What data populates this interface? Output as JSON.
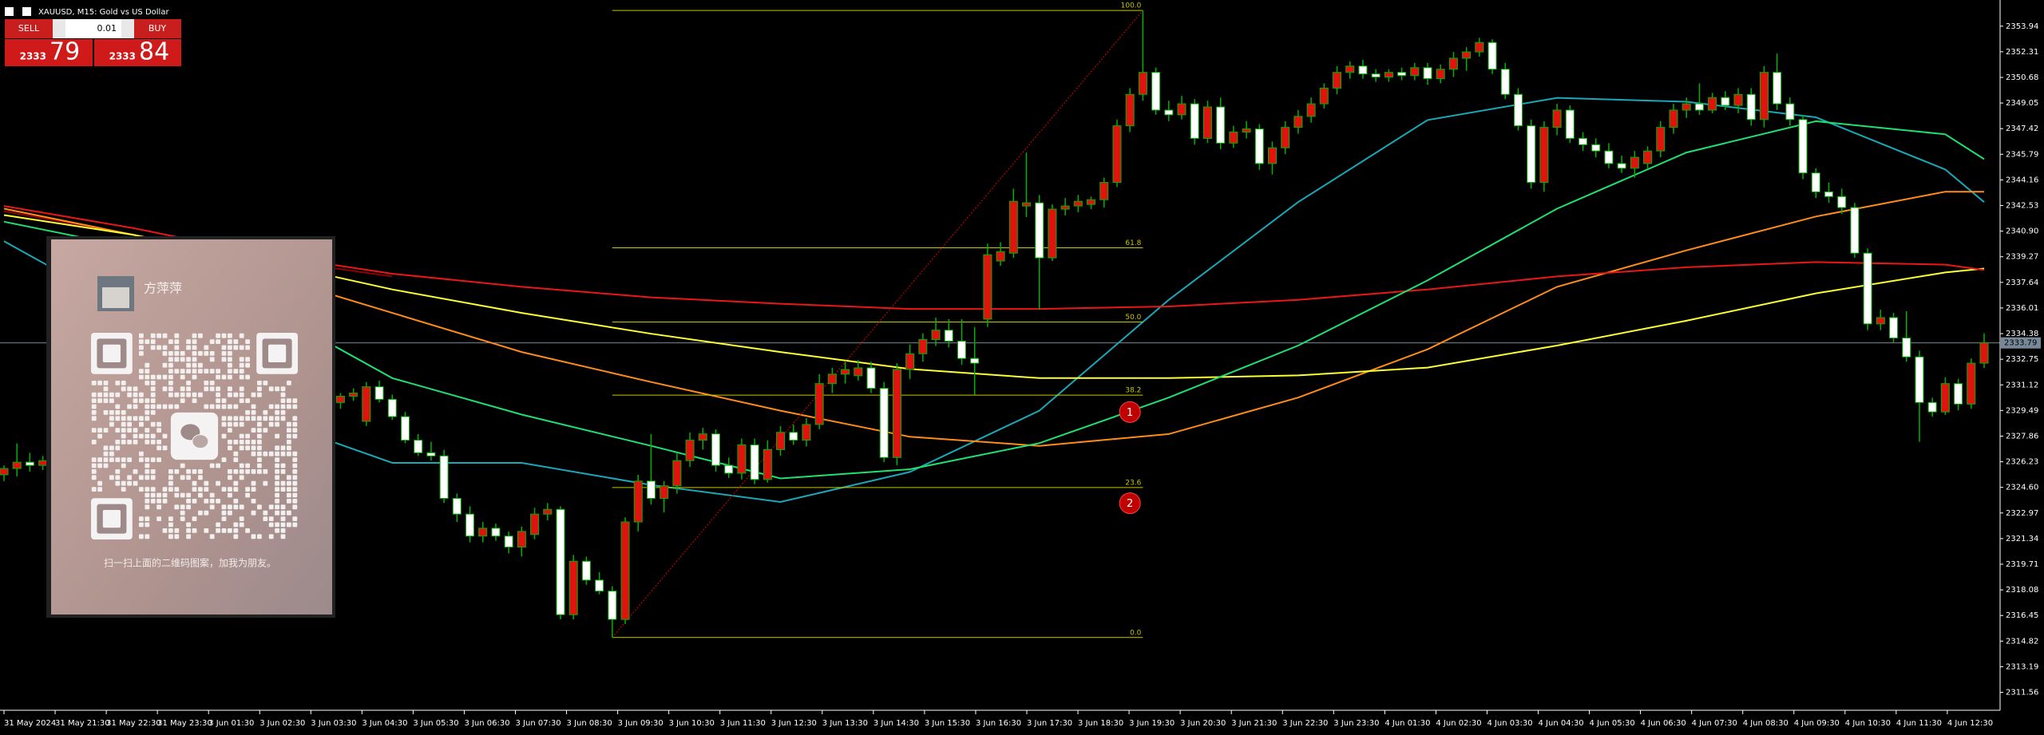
{
  "chart_data": {
    "type": "candlestick",
    "title": "XAUUSD, M15:  Gold vs US Dollar",
    "up_color": "#e0130f",
    "down_color": "#ffffff",
    "wick_color": "#00b300",
    "ylim": [
      2310.42,
      2355.35
    ],
    "yticks": [
      2353.94,
      2352.31,
      2350.68,
      2349.05,
      2347.42,
      2345.79,
      2344.16,
      2342.53,
      {
        "value": 2340.9,
        "label": "2340.90"
      },
      2339.27,
      2337.64,
      2336.01,
      2334.38,
      2332.75,
      2331.12,
      2329.49,
      2327.86,
      2326.23,
      {
        "value": 2324.6,
        "label": "2324.60"
      },
      2322.97,
      2321.34,
      2319.71,
      2318.08,
      2316.45,
      2314.82,
      2313.19,
      2311.56
    ],
    "x_labels": [
      "31 May 2024",
      "31 May 21:30",
      "31 May 22:30",
      "31 May 23:30",
      "3 Jun 01:30",
      "3 Jun 02:30",
      "3 Jun 03:30",
      "3 Jun 04:30",
      "3 Jun 05:30",
      "3 Jun 06:30",
      "3 Jun 07:30",
      "3 Jun 08:30",
      "3 Jun 09:30",
      "3 Jun 10:30",
      "3 Jun 11:30",
      "3 Jun 12:30",
      "3 Jun 13:30",
      "3 Jun 14:30",
      "3 Jun 15:30",
      "3 Jun 16:30",
      "3 Jun 17:30",
      "3 Jun 18:30",
      "3 Jun 19:30",
      "3 Jun 20:30",
      "3 Jun 21:30",
      "3 Jun 22:30",
      "3 Jun 23:30",
      "4 Jun 01:30",
      "4 Jun 02:30",
      "4 Jun 03:30",
      "4 Jun 04:30",
      "4 Jun 05:30",
      "4 Jun 06:30",
      "4 Jun 07:30",
      "4 Jun 08:30",
      "4 Jun 09:30",
      "4 Jun 10:30",
      "4 Jun 11:30",
      "4 Jun 12:30"
    ],
    "open": [
      2325.4,
      2325.8,
      2326.2,
      2326.0,
      null,
      null,
      null,
      null,
      null,
      null,
      null,
      null,
      null,
      null,
      null,
      null,
      null,
      null,
      null,
      null,
      null,
      null,
      null,
      null,
      null,
      null,
      2330.0,
      2330.4,
      2328.8,
      2331.0,
      2330.2,
      2329.1,
      2327.6,
      2326.8,
      2326.6,
      2323.9,
      2322.9,
      2321.5,
      2322.0,
      2321.5,
      2320.8,
      2321.6,
      2322.9,
      2323.2,
      2316.5,
      2319.9,
      2318.7,
      2318.0,
      2316.2,
      2322.4,
      2325.0,
      2323.9,
      2324.7,
      2326.3,
      2327.6,
      2328.0,
      2326.0,
      2325.5,
      2327.3,
      2325.1,
      2327.0,
      2328.1,
      2327.6,
      2328.6,
      2331.2,
      2331.8,
      2331.7,
      2332.2,
      2330.9,
      2326.5,
      2332.1,
      2333.1,
      2334.0,
      2334.6,
      2333.9,
      2332.8,
      2335.3,
      2339.0,
      2339.5,
      2342.5,
      2342.7,
      2339.2,
      2342.3,
      2342.5,
      2342.6,
      2342.9,
      2344.0,
      2347.6,
      2349.6,
      2351.0,
      2348.6,
      2348.3,
      2349.0,
      2346.8,
      2348.8,
      2346.5,
      2347.2,
      2347.4,
      2345.2,
      2346.2,
      2347.5,
      2348.2,
      2349.0,
      2350.0,
      2351.0,
      2351.4,
      2350.9,
      2350.7,
      2351.0,
      2350.8,
      2351.3,
      2350.6,
      2351.2,
      2351.9,
      2352.3,
      2352.9,
      2351.2,
      2349.6,
      2347.6,
      2344.0,
      2347.5,
      2348.6,
      2346.8,
      2346.4,
      2346.0,
      2345.2,
      2344.9,
      2345.2,
      2346.0,
      2347.5,
      2348.6,
      2349.0,
      2348.6,
      2349.4,
      2348.9,
      2349.6,
      2348.0,
      2351.0,
      2349.0,
      2348.0,
      2344.6,
      2343.4,
      2343.1,
      2342.4,
      2339.5,
      2335.0,
      2335.4,
      2334.1,
      2332.9,
      2330.0,
      2329.4,
      2331.2,
      2329.9,
      2332.5
    ],
    "high": [
      2326.0,
      2327.4,
      2326.8,
      2326.6,
      null,
      null,
      null,
      null,
      null,
      null,
      null,
      null,
      null,
      null,
      null,
      null,
      null,
      null,
      null,
      null,
      null,
      null,
      null,
      null,
      null,
      null,
      2330.6,
      2330.9,
      2331.3,
      2331.4,
      2330.5,
      2329.4,
      2328.0,
      2327.5,
      2327.0,
      2324.2,
      2323.4,
      2322.4,
      2322.3,
      2321.8,
      2322.1,
      2323.3,
      2323.6,
      2323.4,
      2320.3,
      2320.2,
      2319.2,
      2318.3,
      2322.7,
      2325.4,
      2328.0,
      2325.0,
      2326.8,
      2328.1,
      2328.4,
      2328.3,
      2326.5,
      2327.7,
      2327.7,
      2327.6,
      2328.5,
      2328.6,
      2329.0,
      2331.8,
      2332.2,
      2332.6,
      2332.7,
      2332.6,
      2331.3,
      2332.5,
      2333.7,
      2334.4,
      2335.4,
      2335.3,
      2335.3,
      2334.8,
      2340.1,
      2340.2,
      2343.6,
      2345.9,
      2343.2,
      2342.6,
      2343.0,
      2343.2,
      2343.1,
      2344.3,
      2348.0,
      2350.0,
      2354.94,
      2351.3,
      2349.2,
      2349.5,
      2349.3,
      2349.2,
      2349.4,
      2347.6,
      2347.9,
      2347.7,
      2346.6,
      2347.9,
      2348.6,
      2349.4,
      2350.3,
      2351.4,
      2351.7,
      2351.8,
      2351.2,
      2351.2,
      2351.3,
      2351.6,
      2351.6,
      2351.5,
      2352.3,
      2352.6,
      2353.2,
      2353.1,
      2351.6,
      2350.0,
      2348.0,
      2347.9,
      2349.0,
      2348.9,
      2347.2,
      2346.8,
      2346.5,
      2345.7,
      2346.0,
      2346.3,
      2347.9,
      2349.0,
      2349.4,
      2350.3,
      2349.7,
      2349.8,
      2350.0,
      2350.0,
      2351.4,
      2352.2,
      2349.4,
      2348.3,
      2344.9,
      2344.0,
      2343.6,
      2342.7,
      2339.8,
      2335.9,
      2335.7,
      2335.8,
      2333.3,
      2330.3,
      2331.6,
      2331.5,
      2332.8,
      2334.4
    ],
    "low": [
      2325.0,
      2325.3,
      2325.6,
      2325.7,
      null,
      null,
      null,
      null,
      null,
      null,
      null,
      null,
      null,
      null,
      null,
      null,
      null,
      null,
      null,
      null,
      null,
      null,
      null,
      null,
      null,
      null,
      2329.6,
      2330.1,
      2328.5,
      2330.0,
      2328.9,
      2327.4,
      2326.6,
      2326.3,
      2323.6,
      2322.4,
      2321.1,
      2321.1,
      2321.2,
      2320.4,
      2320.2,
      2321.3,
      2322.5,
      2316.2,
      2316.2,
      2318.4,
      2317.8,
      2315.05,
      2315.9,
      2321.8,
      2323.5,
      2323.0,
      2324.2,
      2325.9,
      2327.0,
      2325.6,
      2325.2,
      2325.1,
      2324.8,
      2324.9,
      2326.6,
      2327.3,
      2327.2,
      2328.3,
      2330.6,
      2331.2,
      2331.4,
      2330.6,
      2326.2,
      2326.0,
      2331.5,
      2332.6,
      2333.6,
      2333.5,
      2332.4,
      2330.5,
      2334.8,
      2338.7,
      2339.2,
      2341.8,
      2335.9,
      2339.0,
      2341.9,
      2342.1,
      2342.3,
      2342.4,
      2343.7,
      2347.2,
      2349.2,
      2348.3,
      2347.9,
      2348.0,
      2346.4,
      2346.5,
      2346.1,
      2346.2,
      2346.8,
      2344.8,
      2344.5,
      2345.8,
      2347.1,
      2347.8,
      2348.7,
      2349.6,
      2350.6,
      2350.6,
      2350.4,
      2350.4,
      2350.5,
      2350.5,
      2350.2,
      2350.3,
      2350.7,
      2351.1,
      2352.0,
      2350.9,
      2349.3,
      2347.3,
      2343.6,
      2343.4,
      2347.0,
      2346.5,
      2346.0,
      2345.6,
      2344.9,
      2344.6,
      2344.3,
      2344.9,
      2345.6,
      2347.1,
      2348.1,
      2348.3,
      2348.4,
      2348.6,
      2348.4,
      2347.6,
      2347.5,
      2348.6,
      2347.6,
      2344.2,
      2343.0,
      2342.7,
      2342.0,
      2339.2,
      2334.6,
      2334.6,
      2333.8,
      2332.6,
      2327.5,
      2329.1,
      2329.2,
      2329.5,
      2329.6,
      2332.2
    ],
    "close": [
      2325.8,
      2326.2,
      2326.0,
      2326.3,
      null,
      null,
      null,
      null,
      null,
      null,
      null,
      null,
      null,
      null,
      null,
      null,
      null,
      null,
      null,
      null,
      null,
      null,
      null,
      null,
      null,
      null,
      2330.4,
      2330.6,
      2331.0,
      2330.2,
      2329.1,
      2327.6,
      2326.8,
      2326.6,
      2323.9,
      2322.9,
      2321.5,
      2322.0,
      2321.5,
      2320.8,
      2321.8,
      2322.9,
      2323.2,
      2316.5,
      2319.9,
      2318.7,
      2318.0,
      2316.2,
      2322.4,
      2325.0,
      2323.9,
      2324.7,
      2326.3,
      2327.6,
      2328.0,
      2326.0,
      2325.5,
      2327.3,
      2325.1,
      2327.0,
      2328.1,
      2327.6,
      2328.6,
      2331.2,
      2331.8,
      2332.1,
      2332.2,
      2330.9,
      2326.5,
      2332.1,
      2333.1,
      2334.0,
      2334.6,
      2333.9,
      2332.8,
      2332.5,
      2339.4,
      2339.6,
      2342.8,
      2342.7,
      2339.2,
      2342.3,
      2342.5,
      2342.8,
      2342.9,
      2344.0,
      2347.6,
      2349.6,
      2351.0,
      2348.6,
      2348.3,
      2349.0,
      2346.8,
      2348.8,
      2346.5,
      2347.2,
      2347.4,
      2345.2,
      2346.2,
      2347.5,
      2348.2,
      2349.0,
      2350.0,
      2351.0,
      2351.4,
      2350.9,
      2350.7,
      2351.0,
      2350.8,
      2351.3,
      2350.6,
      2351.2,
      2351.9,
      2352.3,
      2352.9,
      2351.2,
      2349.6,
      2347.6,
      2344.0,
      2347.5,
      2348.6,
      2346.8,
      2346.4,
      2346.0,
      2345.2,
      2344.9,
      2345.6,
      2346.0,
      2347.5,
      2348.6,
      2349.0,
      2348.6,
      2349.4,
      2348.9,
      2349.6,
      2348.0,
      2351.0,
      2349.0,
      2348.0,
      2344.6,
      2343.4,
      2343.1,
      2342.4,
      2339.5,
      2335.0,
      2335.4,
      2334.1,
      2332.9,
      2330.0,
      2329.4,
      2331.2,
      2329.9,
      2332.5,
      2333.79
    ],
    "ma_x": [
      0,
      10,
      20,
      30,
      40,
      50,
      60,
      70,
      80,
      90,
      100,
      110,
      120,
      130,
      140,
      150,
      153
    ],
    "lines": [
      {
        "color": "#1aa8b8",
        "values": [
          2340.26,
          2335.7,
          2329.06,
          2326.16,
          2326.16,
          2324.75,
          2323.67,
          2325.58,
          2329.48,
          2336.53,
          2342.75,
          2347.97,
          2349.38,
          2349.13,
          2348.14,
          2344.82,
          2342.75
        ]
      },
      {
        "color": "#8b0000",
        "values": [
          2342.17,
          2340.67,
          2339.18,
          2338.02,
          null,
          null,
          null,
          null,
          null,
          null,
          null,
          null,
          null,
          null,
          null,
          null,
          null
        ]
      },
      {
        "color": "#ff8c1a",
        "values": [
          2342.33,
          2340.67,
          2338.19,
          2335.7,
          2333.21,
          2331.3,
          2329.48,
          2327.82,
          2327.24,
          2327.99,
          2330.31,
          2333.38,
          2337.36,
          2339.68,
          2341.83,
          2343.41,
          2343.41
        ]
      },
      {
        "color": "#ffff33",
        "values": [
          2341.92,
          2340.67,
          2339.01,
          2337.19,
          2335.7,
          2334.37,
          2333.21,
          2332.13,
          2331.55,
          2331.55,
          2331.72,
          2332.22,
          2333.62,
          2335.2,
          2336.94,
          2338.27,
          2338.52
        ]
      },
      {
        "color": "#e81818",
        "values": [
          2342.5,
          2341.09,
          2339.43,
          2338.19,
          2337.36,
          2336.69,
          2336.28,
          2335.95,
          2335.95,
          2336.11,
          2336.53,
          2337.19,
          2338.02,
          2338.6,
          2338.93,
          2338.77,
          2338.43
        ]
      },
      {
        "color": "#20e070",
        "values": [
          2341.5,
          2339.84,
          2336.11,
          2331.55,
          2329.23,
          2327.24,
          2325.17,
          2325.75,
          2327.41,
          2330.31,
          2333.62,
          2337.77,
          2342.33,
          2345.9,
          2347.89,
          2347.06,
          2345.48
        ]
      }
    ],
    "fibonacci": {
      "color": "#c8c800",
      "anchor_x": [
        47,
        88
      ],
      "levels": [
        {
          "value": 2354.94,
          "label": "100.0"
        },
        {
          "value": 2339.84,
          "label": "61.8"
        },
        {
          "value": 2335.12,
          "label": "50.0"
        },
        {
          "value": 2330.47,
          "label": "38.2"
        },
        {
          "value": 2324.59,
          "label": "23.6"
        },
        {
          "value": 2315.05,
          "label": "0.0"
        }
      ]
    },
    "markers": [
      {
        "label": "1",
        "x": 87,
        "value": 2329.39
      },
      {
        "label": "2",
        "x": 87,
        "value": 2323.59
      }
    ],
    "current_price": 2333.79
  },
  "trade_panel": {
    "sell": "SELL",
    "buy": "BUY",
    "lot": "0.01",
    "bid_main": "2333",
    "bid_pips": "79",
    "ask_main": "2333",
    "ask_pips": "84"
  },
  "qr_card": {
    "name": "方萍萍",
    "caption": "扫一扫上面的二维码图案，加我为朋友。"
  }
}
